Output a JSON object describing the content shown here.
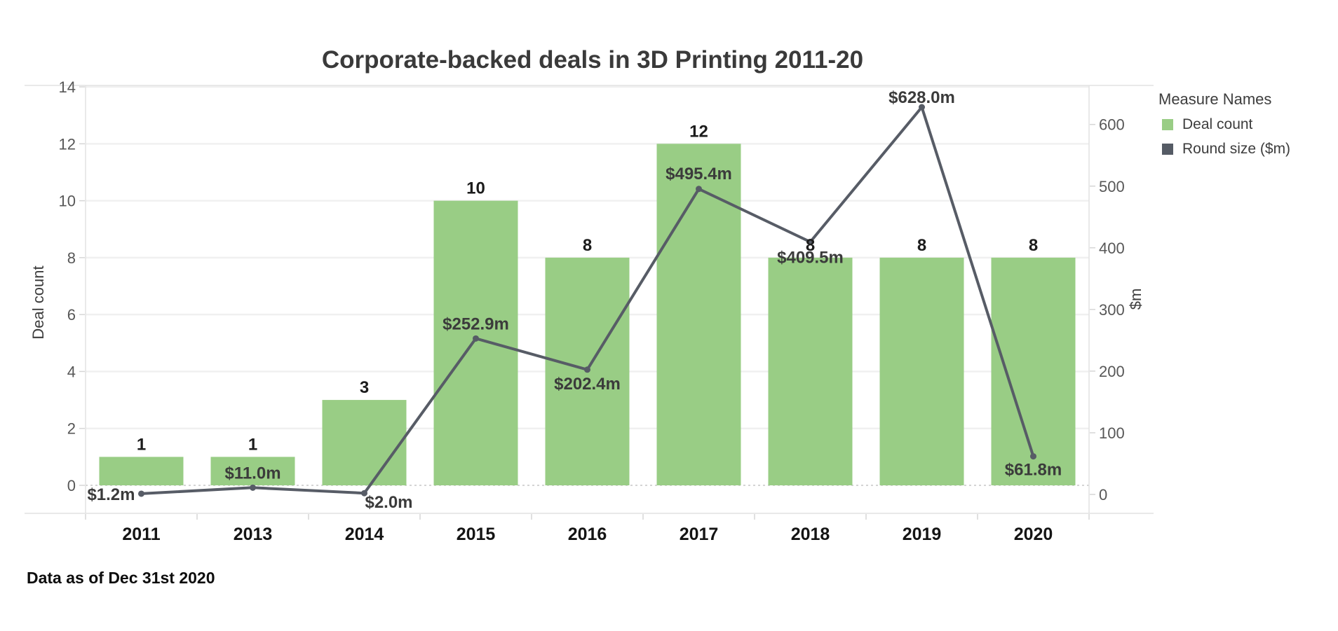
{
  "title": "Corporate-backed deals in 3D Printing 2011-20",
  "footnote": "Data as of Dec 31st 2020",
  "legend": {
    "title": "Measure Names",
    "items": [
      {
        "label": "Deal count",
        "color": "#99cd85"
      },
      {
        "label": "Round size ($m)",
        "color": "#555b65"
      }
    ]
  },
  "chart_data": {
    "type": "bar+line dual-axis",
    "title": "Corporate-backed deals in 3D Printing 2011-20",
    "categories": [
      "2011",
      "2013",
      "2014",
      "2015",
      "2016",
      "2017",
      "2018",
      "2019",
      "2020"
    ],
    "series": [
      {
        "name": "Deal count",
        "type": "bar",
        "axis": "left",
        "color": "#99cd85",
        "values": [
          1,
          1,
          3,
          10,
          8,
          12,
          8,
          8,
          8
        ],
        "labels": [
          "1",
          "1",
          "3",
          "10",
          "8",
          "12",
          "8",
          "8",
          "8"
        ]
      },
      {
        "name": "Round size ($m)",
        "type": "line",
        "axis": "right",
        "color": "#575c66",
        "values": [
          1.2,
          11.0,
          2.0,
          252.9,
          202.4,
          495.4,
          409.5,
          628.0,
          61.8
        ],
        "labels": [
          "$1.2m",
          "$11.0m",
          "$2.0m",
          "$252.9m",
          "$202.4m",
          "$495.4m",
          "$409.5m",
          "$628.0m",
          "$61.8m"
        ],
        "label_pos": [
          {
            "anchor": "end",
            "dx": -9,
            "dy": 9
          },
          {
            "anchor": "middle",
            "dx": 0,
            "dy": -13
          },
          {
            "anchor": "middle",
            "dx": 35,
            "dy": 21
          },
          {
            "anchor": "middle",
            "dx": 0,
            "dy": -13
          },
          {
            "anchor": "middle",
            "dx": 0,
            "dy": 28
          },
          {
            "anchor": "middle",
            "dx": 0,
            "dy": -14
          },
          {
            "anchor": "middle",
            "dx": 0,
            "dy": 30
          },
          {
            "anchor": "middle",
            "dx": 0,
            "dy": -6
          },
          {
            "anchor": "middle",
            "dx": 0,
            "dy": 27
          }
        ]
      }
    ],
    "left_axis": {
      "label": "Deal count",
      "ticks": [
        0,
        2,
        4,
        6,
        8,
        10,
        12,
        14
      ],
      "range": [
        0,
        14
      ]
    },
    "right_axis": {
      "label": "$m",
      "ticks": [
        0,
        100,
        200,
        300,
        400,
        500,
        600
      ],
      "range": [
        0,
        628
      ]
    },
    "grid": true,
    "zero_line": "dotted",
    "legend_position": "right",
    "colors": {
      "bar": "#99cd85",
      "line": "#575c66",
      "grid": "#f0f0f0",
      "axis": "#e2e2e2",
      "tick": "#d6d6d6",
      "zero": "#c6c6c6",
      "bar_label": "#1c1c1c",
      "line_label": "#3b3b3b",
      "tick_label": "#575757",
      "axis_label": "#3d3d3d",
      "x_label": "#141414"
    }
  }
}
